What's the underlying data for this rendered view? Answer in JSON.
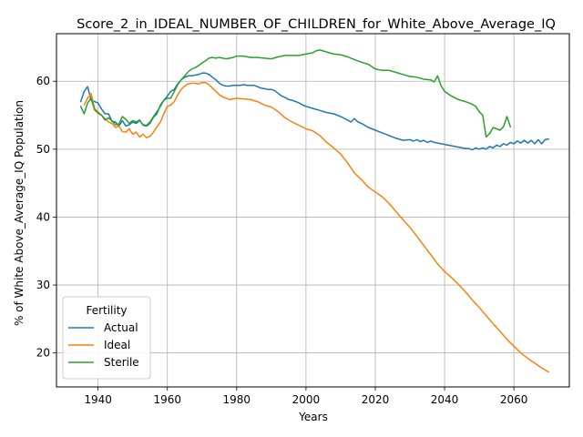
{
  "chart_data": {
    "type": "line",
    "title": "Score_2_in_IDEAL_NUMBER_OF_CHILDREN_for_White_Above_Average_IQ",
    "xlabel": "Years",
    "ylabel": "% of White Above_Average_IQ Population",
    "xlim": [
      1928,
      2076
    ],
    "ylim": [
      15,
      67
    ],
    "xticks": [
      1940,
      1960,
      1980,
      2000,
      2020,
      2040,
      2060
    ],
    "yticks": [
      20,
      30,
      40,
      50,
      60
    ],
    "grid": true,
    "legend": {
      "title": "Fertility",
      "position": "lower-left"
    },
    "series": [
      {
        "name": "Actual",
        "color": "#1f77b4",
        "x": [
          1935,
          1936,
          1937,
          1938,
          1939,
          1940,
          1941,
          1942,
          1943,
          1944,
          1945,
          1946,
          1947,
          1948,
          1949,
          1950,
          1951,
          1952,
          1953,
          1954,
          1955,
          1956,
          1957,
          1958,
          1959,
          1960,
          1961,
          1962,
          1963,
          1964,
          1965,
          1966,
          1967,
          1968,
          1969,
          1970,
          1971,
          1972,
          1973,
          1974,
          1975,
          1976,
          1977,
          1978,
          1979,
          1980,
          1981,
          1982,
          1983,
          1984,
          1985,
          1986,
          1987,
          1988,
          1989,
          1990,
          1991,
          1992,
          1993,
          1994,
          1995,
          1996,
          1997,
          1998,
          1999,
          2000,
          2002,
          2004,
          2006,
          2008,
          2010,
          2012,
          2013,
          2014,
          2015,
          2016,
          2018,
          2020,
          2022,
          2024,
          2026,
          2028,
          2030,
          2031,
          2032,
          2033,
          2034,
          2035,
          2036,
          2037,
          2038,
          2040,
          2042,
          2044,
          2046,
          2047,
          2048,
          2049,
          2050,
          2051,
          2052,
          2053,
          2054,
          2055,
          2056,
          2057,
          2058,
          2059,
          2060,
          2061,
          2062,
          2063,
          2064,
          2065,
          2066,
          2067,
          2068,
          2069,
          2070
        ],
        "values": [
          57.0,
          58.5,
          59.2,
          57.2,
          57.0,
          56.8,
          55.9,
          55.2,
          55.2,
          54.1,
          54.0,
          53.4,
          54.2,
          53.4,
          53.6,
          54.0,
          53.8,
          54.2,
          53.6,
          53.5,
          54.0,
          54.8,
          55.5,
          56.3,
          57.2,
          57.8,
          58.5,
          58.8,
          59.6,
          60.2,
          60.6,
          60.8,
          60.8,
          60.9,
          61.0,
          61.2,
          61.2,
          61.0,
          60.6,
          60.2,
          59.7,
          59.4,
          59.3,
          59.3,
          59.4,
          59.4,
          59.4,
          59.5,
          59.4,
          59.4,
          59.4,
          59.2,
          59.0,
          58.9,
          58.8,
          58.8,
          58.6,
          58.2,
          57.8,
          57.6,
          57.3,
          57.2,
          57.0,
          56.8,
          56.5,
          56.3,
          56.0,
          55.7,
          55.4,
          55.2,
          54.8,
          54.3,
          54.0,
          54.5,
          54.0,
          53.8,
          53.2,
          52.8,
          52.4,
          52.0,
          51.6,
          51.3,
          51.4,
          51.2,
          51.4,
          51.1,
          51.3,
          51.0,
          51.2,
          51.0,
          50.9,
          50.7,
          50.5,
          50.3,
          50.1,
          50.1,
          49.9,
          50.2,
          50.0,
          50.2,
          50.0,
          50.4,
          50.2,
          50.6,
          50.4,
          50.8,
          50.6,
          51.0,
          50.8,
          51.2,
          50.9,
          51.3,
          50.9,
          51.3,
          50.8,
          51.4,
          50.8,
          51.4,
          51.5
        ]
      },
      {
        "name": "Ideal",
        "color": "#ff7f0e",
        "x": [
          1936,
          1937,
          1938,
          1939,
          1940,
          1941,
          1942,
          1943,
          1944,
          1945,
          1946,
          1947,
          1948,
          1949,
          1950,
          1951,
          1952,
          1953,
          1954,
          1955,
          1956,
          1957,
          1958,
          1959,
          1960,
          1961,
          1962,
          1963,
          1964,
          1965,
          1966,
          1967,
          1968,
          1969,
          1970,
          1971,
          1972,
          1973,
          1974,
          1975,
          1976,
          1977,
          1978,
          1979,
          1980,
          1982,
          1984,
          1986,
          1988,
          1990,
          1992,
          1994,
          1996,
          1998,
          2000,
          2002,
          2004,
          2006,
          2008,
          2010,
          2012,
          2014,
          2016,
          2018,
          2020,
          2022,
          2024,
          2026,
          2028,
          2030,
          2032,
          2034,
          2036,
          2038,
          2040,
          2042,
          2044,
          2046,
          2048,
          2050,
          2052,
          2054,
          2056,
          2058,
          2060,
          2062,
          2064,
          2066,
          2068,
          2070
        ],
        "values": [
          56.5,
          57.5,
          58.2,
          56.0,
          55.5,
          55.0,
          54.5,
          54.0,
          53.8,
          53.2,
          53.4,
          52.6,
          52.5,
          53.0,
          52.2,
          52.5,
          51.8,
          52.2,
          51.7,
          51.9,
          52.5,
          53.3,
          54.0,
          55.2,
          56.3,
          56.5,
          57.0,
          58.0,
          58.8,
          59.3,
          59.6,
          59.7,
          59.7,
          59.6,
          59.8,
          59.8,
          59.5,
          59.0,
          58.5,
          58.0,
          57.7,
          57.5,
          57.3,
          57.4,
          57.5,
          57.4,
          57.3,
          57.0,
          56.5,
          56.2,
          55.5,
          54.6,
          54.0,
          53.5,
          53.0,
          52.7,
          52.0,
          51.0,
          50.2,
          49.3,
          48.0,
          46.5,
          45.5,
          44.4,
          43.7,
          43.0,
          42.0,
          40.8,
          39.6,
          38.5,
          37.2,
          35.8,
          34.5,
          33.1,
          32.0,
          31.1,
          30.1,
          29.0,
          27.8,
          26.7,
          25.5,
          24.3,
          23.2,
          22.0,
          21.0,
          20.0,
          19.2,
          18.5,
          17.8,
          17.2
        ]
      },
      {
        "name": "Sterile",
        "color": "#2ca02c",
        "x": [
          1935,
          1936,
          1937,
          1938,
          1939,
          1940,
          1941,
          1942,
          1943,
          1944,
          1945,
          1946,
          1947,
          1948,
          1949,
          1950,
          1951,
          1952,
          1953,
          1954,
          1955,
          1956,
          1957,
          1958,
          1959,
          1960,
          1961,
          1962,
          1963,
          1964,
          1965,
          1966,
          1967,
          1968,
          1969,
          1970,
          1971,
          1972,
          1973,
          1974,
          1975,
          1976,
          1977,
          1978,
          1979,
          1980,
          1982,
          1984,
          1986,
          1988,
          1990,
          1992,
          1994,
          1996,
          1998,
          2000,
          2002,
          2003,
          2004,
          2006,
          2008,
          2010,
          2012,
          2014,
          2016,
          2018,
          2020,
          2022,
          2024,
          2026,
          2028,
          2030,
          2032,
          2034,
          2036,
          2037,
          2038,
          2039,
          2040,
          2042,
          2044,
          2046,
          2048,
          2049,
          2050,
          2051,
          2052,
          2053,
          2054,
          2055,
          2056,
          2057,
          2058,
          2059
        ],
        "values": [
          56.3,
          55.2,
          56.8,
          57.5,
          55.8,
          55.3,
          55.0,
          54.3,
          54.6,
          54.2,
          53.6,
          53.7,
          54.8,
          54.4,
          53.8,
          54.2,
          54.0,
          54.3,
          53.5,
          53.4,
          53.8,
          54.7,
          55.2,
          56.5,
          57.2,
          57.5,
          57.5,
          58.5,
          59.5,
          60.2,
          60.8,
          61.4,
          61.8,
          62.0,
          62.3,
          62.7,
          63.0,
          63.4,
          63.5,
          63.4,
          63.5,
          63.4,
          63.3,
          63.4,
          63.5,
          63.7,
          63.7,
          63.5,
          63.5,
          63.4,
          63.3,
          63.6,
          63.8,
          63.8,
          63.8,
          64.0,
          64.2,
          64.5,
          64.6,
          64.3,
          64.0,
          63.9,
          63.6,
          63.2,
          62.8,
          62.5,
          61.8,
          61.6,
          61.6,
          61.3,
          61.0,
          60.7,
          60.6,
          60.3,
          60.2,
          59.9,
          60.8,
          59.3,
          58.5,
          57.8,
          57.3,
          57.0,
          56.6,
          56.3,
          55.5,
          55.0,
          51.8,
          52.3,
          53.2,
          53.0,
          52.8,
          53.3,
          54.8,
          53.3
        ]
      }
    ]
  }
}
